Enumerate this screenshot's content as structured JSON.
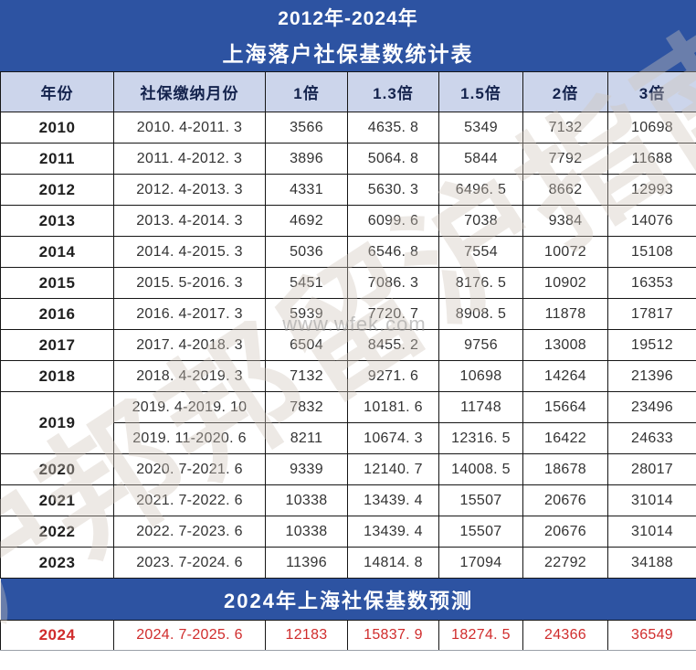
{
  "banner": {
    "line1": "2012年-2024年",
    "line2": "上海落户社保基数统计表"
  },
  "columns": [
    "年份",
    "社保缴纳月份",
    "1倍",
    "1.3倍",
    "1.5倍",
    "2倍",
    "3倍"
  ],
  "rows": [
    {
      "year": "2010",
      "periods": [
        {
          "period": "2010. 4-2011. 3",
          "values": [
            "3566",
            "4635. 8",
            "5349",
            "7132",
            "10698"
          ]
        }
      ]
    },
    {
      "year": "2011",
      "periods": [
        {
          "period": "2011. 4-2012. 3",
          "values": [
            "3896",
            "5064. 8",
            "5844",
            "7792",
            "11688"
          ]
        }
      ]
    },
    {
      "year": "2012",
      "periods": [
        {
          "period": "2012. 4-2013. 3",
          "values": [
            "4331",
            "5630. 3",
            "6496. 5",
            "8662",
            "12993"
          ]
        }
      ]
    },
    {
      "year": "2013",
      "periods": [
        {
          "period": "2013. 4-2014. 3",
          "values": [
            "4692",
            "6099. 6",
            "7038",
            "9384",
            "14076"
          ]
        }
      ]
    },
    {
      "year": "2014",
      "periods": [
        {
          "period": "2014. 4-2015. 3",
          "values": [
            "5036",
            "6546. 8",
            "7554",
            "10072",
            "15108"
          ]
        }
      ]
    },
    {
      "year": "2015",
      "periods": [
        {
          "period": "2015. 5-2016. 3",
          "values": [
            "5451",
            "7086. 3",
            "8176. 5",
            "10902",
            "16353"
          ]
        }
      ]
    },
    {
      "year": "2016",
      "periods": [
        {
          "period": "2016. 4-2017. 3",
          "values": [
            "5939",
            "7720. 7",
            "8908. 5",
            "11878",
            "17817"
          ]
        }
      ]
    },
    {
      "year": "2017",
      "periods": [
        {
          "period": "2017. 4-2018. 3",
          "values": [
            "6504",
            "8455. 2",
            "9756",
            "13008",
            "19512"
          ]
        }
      ]
    },
    {
      "year": "2018",
      "periods": [
        {
          "period": "2018. 4-2019. 3",
          "values": [
            "7132",
            "9271. 6",
            "10698",
            "14264",
            "21396"
          ]
        }
      ]
    },
    {
      "year": "2019",
      "periods": [
        {
          "period": "2019. 4-2019. 10",
          "values": [
            "7832",
            "10181. 6",
            "11748",
            "15664",
            "23496"
          ]
        },
        {
          "period": "2019. 11-2020. 6",
          "values": [
            "8211",
            "10674. 3",
            "12316. 5",
            "16422",
            "24633"
          ]
        }
      ]
    },
    {
      "year": "2020",
      "periods": [
        {
          "period": "2020. 7-2021. 6",
          "values": [
            "9339",
            "12140. 7",
            "14008. 5",
            "18678",
            "28017"
          ]
        }
      ]
    },
    {
      "year": "2021",
      "periods": [
        {
          "period": "2021. 7-2022. 6",
          "values": [
            "10338",
            "13439. 4",
            "15507",
            "20676",
            "31014"
          ]
        }
      ]
    },
    {
      "year": "2022",
      "periods": [
        {
          "period": "2022. 7-2023. 6",
          "values": [
            "10338",
            "13439. 4",
            "15507",
            "20676",
            "31014"
          ]
        }
      ]
    },
    {
      "year": "2023",
      "periods": [
        {
          "period": "2023. 7-2024. 6",
          "values": [
            "11396",
            "14814. 8",
            "17094",
            "22792",
            "34188"
          ]
        }
      ]
    }
  ],
  "forecast": {
    "banner": "2024年上海社保基数预测",
    "year": "2024",
    "period": "2024. 7-2025. 6",
    "values": [
      "12183",
      "15837. 9",
      "18274. 5",
      "24366",
      "36549"
    ]
  },
  "watermark": {
    "diagonal_text": "沪邦邦留沪指南",
    "url_text": "www.wfek.com"
  },
  "colors": {
    "banner_bg": "#2d53a2",
    "header_bg": "#ccd5eb",
    "header_text": "#14234d",
    "body_text": "#333333",
    "forecast_text": "#d02c2c",
    "border": "#161616"
  }
}
